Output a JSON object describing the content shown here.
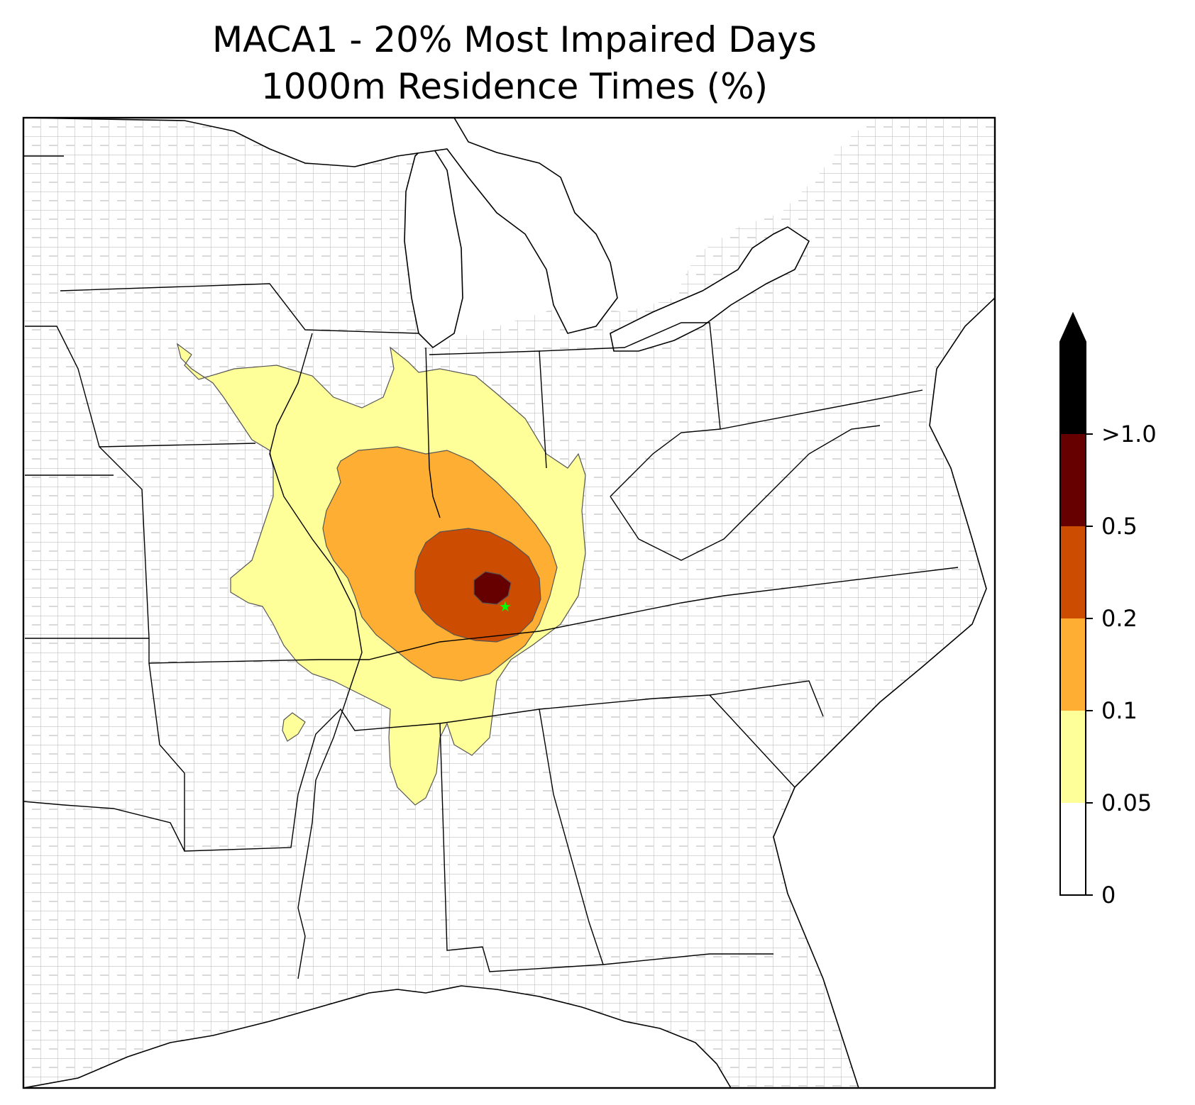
{
  "title": {
    "line1": "MACA1 - 20% Most Impaired Days",
    "line2": "1000m Residence Times (%)"
  },
  "map": {
    "region": "Eastern United States",
    "boundaries": [
      "state-boundaries",
      "county-boundaries",
      "coastline"
    ],
    "site_marker": {
      "shape": "star",
      "color": "#00ff00"
    }
  },
  "contour_levels": [
    {
      "label": "0.05",
      "color": "#ffff99"
    },
    {
      "label": "0.1",
      "color": "#fdae33"
    },
    {
      "label": "0.2",
      "color": "#cc4c02"
    },
    {
      "label": "0.5",
      "color": "#660000"
    }
  ],
  "colorbar": {
    "orientation": "vertical",
    "placement": "right",
    "extend": "max",
    "bins": [
      {
        "color": "#ffffff"
      },
      {
        "color": "#ffff99"
      },
      {
        "color": "#fdae33"
      },
      {
        "color": "#cc4c02"
      },
      {
        "color": "#660000"
      },
      {
        "color": "#000000"
      }
    ],
    "tick_labels": [
      "0",
      "0.05",
      "0.1",
      "0.2",
      "0.5",
      ">1.0"
    ]
  }
}
